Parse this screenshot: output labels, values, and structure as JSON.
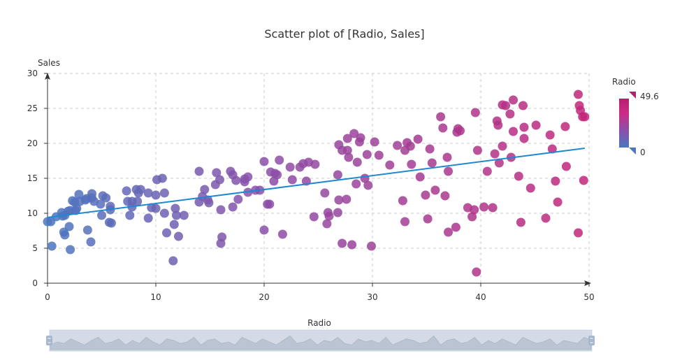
{
  "chart_data": {
    "type": "scatter",
    "title": "Scatter plot of [Radio, Sales]",
    "xlabel": "Radio",
    "ylabel": "Sales",
    "xlim": [
      0,
      50
    ],
    "ylim": [
      0,
      30
    ],
    "x_ticks": [
      0,
      10,
      20,
      30,
      40,
      50
    ],
    "y_ticks": [
      0,
      5,
      10,
      15,
      20,
      25,
      30
    ],
    "grid": true,
    "colors": {
      "low": "#4a77c0",
      "mid": "#8a4fa8",
      "high": "#c2267a",
      "trend": "#1e88d0"
    },
    "visual_map": {
      "label": "Radio",
      "min": 0,
      "max": 49.6,
      "min_label": "0",
      "max_label": "49.6"
    },
    "trendline": {
      "x": [
        0,
        49.6
      ],
      "y": [
        9.4,
        19.3
      ]
    },
    "data_zoom": {
      "label": "Radio",
      "start": 0,
      "end": 100
    },
    "points": [
      [
        0.0,
        8.8
      ],
      [
        0.3,
        8.8
      ],
      [
        0.4,
        5.3
      ],
      [
        0.8,
        9.5
      ],
      [
        1.3,
        10.1
      ],
      [
        1.4,
        9.6
      ],
      [
        1.5,
        7.3
      ],
      [
        1.6,
        9.7
      ],
      [
        1.6,
        6.9
      ],
      [
        1.9,
        10.3
      ],
      [
        2.0,
        8.1
      ],
      [
        2.1,
        10.4
      ],
      [
        2.1,
        4.8
      ],
      [
        2.3,
        11.8
      ],
      [
        2.5,
        11.6
      ],
      [
        2.6,
        10.4
      ],
      [
        2.7,
        10.7
      ],
      [
        2.9,
        12.7
      ],
      [
        3.0,
        11.7
      ],
      [
        3.5,
        11.9
      ],
      [
        3.6,
        12.1
      ],
      [
        3.7,
        7.6
      ],
      [
        4.0,
        5.9
      ],
      [
        4.1,
        12.8
      ],
      [
        4.1,
        12.2
      ],
      [
        4.3,
        11.7
      ],
      [
        4.9,
        11.3
      ],
      [
        5.0,
        9.7
      ],
      [
        5.1,
        12.5
      ],
      [
        5.4,
        12.2
      ],
      [
        5.7,
        8.7
      ],
      [
        5.8,
        10.5
      ],
      [
        5.8,
        11.0
      ],
      [
        5.9,
        8.6
      ],
      [
        7.3,
        13.2
      ],
      [
        7.4,
        11.7
      ],
      [
        7.6,
        9.7
      ],
      [
        7.8,
        11.7
      ],
      [
        7.8,
        10.9
      ],
      [
        8.2,
        13.4
      ],
      [
        8.3,
        11.7
      ],
      [
        8.4,
        12.9
      ],
      [
        8.6,
        13.4
      ],
      [
        9.3,
        9.3
      ],
      [
        9.3,
        12.9
      ],
      [
        9.6,
        10.8
      ],
      [
        10.0,
        12.6
      ],
      [
        10.0,
        10.7
      ],
      [
        10.1,
        14.8
      ],
      [
        10.6,
        15.0
      ],
      [
        10.8,
        12.9
      ],
      [
        10.8,
        10.0
      ],
      [
        11.0,
        7.2
      ],
      [
        11.6,
        3.2
      ],
      [
        11.7,
        8.4
      ],
      [
        11.8,
        10.7
      ],
      [
        11.9,
        9.7
      ],
      [
        12.1,
        6.7
      ],
      [
        12.6,
        9.7
      ],
      [
        14.0,
        16.0
      ],
      [
        14.0,
        11.6
      ],
      [
        14.3,
        12.4
      ],
      [
        14.5,
        13.4
      ],
      [
        14.8,
        11.9
      ],
      [
        14.9,
        11.5
      ],
      [
        15.5,
        14.1
      ],
      [
        15.6,
        15.8
      ],
      [
        15.9,
        14.8
      ],
      [
        16.0,
        5.7
      ],
      [
        16.0,
        10.5
      ],
      [
        16.1,
        6.6
      ],
      [
        16.9,
        16.0
      ],
      [
        17.1,
        15.5
      ],
      [
        17.1,
        10.9
      ],
      [
        17.4,
        14.7
      ],
      [
        17.6,
        12.0
      ],
      [
        18.2,
        14.9
      ],
      [
        18.2,
        14.5
      ],
      [
        18.5,
        13.0
      ],
      [
        18.5,
        15.2
      ],
      [
        19.2,
        13.3
      ],
      [
        19.6,
        13.3
      ],
      [
        20.0,
        17.4
      ],
      [
        20.0,
        7.6
      ],
      [
        20.3,
        11.3
      ],
      [
        20.5,
        11.3
      ],
      [
        20.6,
        15.9
      ],
      [
        20.9,
        14.6
      ],
      [
        21.0,
        15.7
      ],
      [
        21.2,
        15.5
      ],
      [
        21.4,
        17.6
      ],
      [
        21.7,
        7.0
      ],
      [
        22.4,
        16.6
      ],
      [
        22.6,
        14.8
      ],
      [
        23.3,
        16.6
      ],
      [
        23.6,
        17.1
      ],
      [
        23.9,
        14.6
      ],
      [
        24.1,
        17.3
      ],
      [
        24.6,
        9.5
      ],
      [
        24.7,
        17.0
      ],
      [
        25.6,
        12.9
      ],
      [
        25.8,
        8.5
      ],
      [
        25.9,
        10.1
      ],
      [
        26.0,
        9.6
      ],
      [
        26.8,
        10.1
      ],
      [
        26.8,
        15.5
      ],
      [
        26.9,
        11.9
      ],
      [
        26.9,
        19.8
      ],
      [
        27.2,
        5.7
      ],
      [
        27.2,
        19.0
      ],
      [
        27.6,
        12.0
      ],
      [
        27.7,
        19.0
      ],
      [
        27.7,
        20.7
      ],
      [
        27.8,
        18.0
      ],
      [
        28.1,
        5.5
      ],
      [
        28.3,
        21.4
      ],
      [
        28.5,
        14.2
      ],
      [
        28.6,
        17.3
      ],
      [
        28.8,
        20.2
      ],
      [
        28.9,
        20.8
      ],
      [
        29.3,
        15.0
      ],
      [
        29.5,
        18.4
      ],
      [
        29.6,
        14.0
      ],
      [
        29.9,
        5.3
      ],
      [
        30.2,
        20.2
      ],
      [
        30.6,
        18.3
      ],
      [
        31.6,
        16.9
      ],
      [
        32.3,
        19.7
      ],
      [
        32.8,
        11.8
      ],
      [
        33.0,
        8.8
      ],
      [
        33.0,
        19.0
      ],
      [
        33.2,
        20.1
      ],
      [
        33.5,
        19.6
      ],
      [
        33.6,
        17.0
      ],
      [
        34.2,
        20.6
      ],
      [
        34.4,
        15.2
      ],
      [
        34.9,
        12.6
      ],
      [
        35.1,
        9.2
      ],
      [
        35.3,
        19.2
      ],
      [
        35.5,
        17.2
      ],
      [
        35.8,
        13.3
      ],
      [
        36.3,
        23.8
      ],
      [
        36.5,
        22.2
      ],
      [
        36.7,
        12.5
      ],
      [
        36.9,
        18.0
      ],
      [
        37.0,
        7.3
      ],
      [
        37.0,
        16.0
      ],
      [
        37.7,
        8.0
      ],
      [
        37.8,
        21.6
      ],
      [
        37.9,
        22.1
      ],
      [
        38.1,
        21.8
      ],
      [
        38.8,
        10.8
      ],
      [
        39.2,
        9.5
      ],
      [
        39.4,
        10.5
      ],
      [
        39.5,
        24.4
      ],
      [
        39.6,
        1.6
      ],
      [
        39.7,
        19.0
      ],
      [
        40.3,
        10.9
      ],
      [
        40.6,
        16.0
      ],
      [
        41.1,
        10.8
      ],
      [
        41.3,
        18.5
      ],
      [
        41.5,
        23.2
      ],
      [
        41.6,
        22.6
      ],
      [
        41.7,
        17.2
      ],
      [
        42.0,
        19.6
      ],
      [
        42.0,
        25.5
      ],
      [
        42.3,
        25.4
      ],
      [
        42.7,
        24.2
      ],
      [
        42.8,
        18.0
      ],
      [
        43.0,
        26.2
      ],
      [
        43.0,
        21.7
      ],
      [
        43.5,
        15.3
      ],
      [
        43.7,
        8.7
      ],
      [
        43.9,
        25.4
      ],
      [
        44.0,
        20.7
      ],
      [
        44.0,
        22.3
      ],
      [
        44.6,
        13.6
      ],
      [
        45.1,
        22.6
      ],
      [
        46.0,
        9.3
      ],
      [
        46.4,
        21.2
      ],
      [
        46.6,
        19.2
      ],
      [
        46.9,
        14.6
      ],
      [
        47.1,
        11.6
      ],
      [
        47.8,
        22.4
      ],
      [
        47.9,
        16.7
      ],
      [
        49.0,
        27.0
      ],
      [
        49.0,
        7.2
      ],
      [
        49.1,
        25.4
      ],
      [
        49.2,
        24.7
      ],
      [
        49.4,
        23.8
      ],
      [
        49.5,
        14.7
      ],
      [
        49.6,
        23.8
      ]
    ],
    "zoom_preview": [
      3,
      5,
      4,
      7,
      5,
      3,
      6,
      8,
      4,
      5,
      7,
      3,
      6,
      4,
      8,
      5,
      3,
      7,
      6,
      4,
      5,
      8,
      3,
      6,
      7,
      4,
      5,
      3,
      8,
      6,
      4,
      7,
      5,
      3,
      6,
      9,
      4,
      5,
      7,
      3,
      6,
      5,
      8,
      4,
      3,
      7,
      5,
      6,
      4,
      8,
      3,
      5,
      7,
      6,
      4,
      5,
      9,
      3,
      6,
      7,
      4,
      5,
      8,
      3,
      6,
      4,
      7,
      5,
      3,
      8,
      6,
      4,
      5,
      7,
      3,
      6,
      5,
      4,
      8,
      6
    ]
  }
}
